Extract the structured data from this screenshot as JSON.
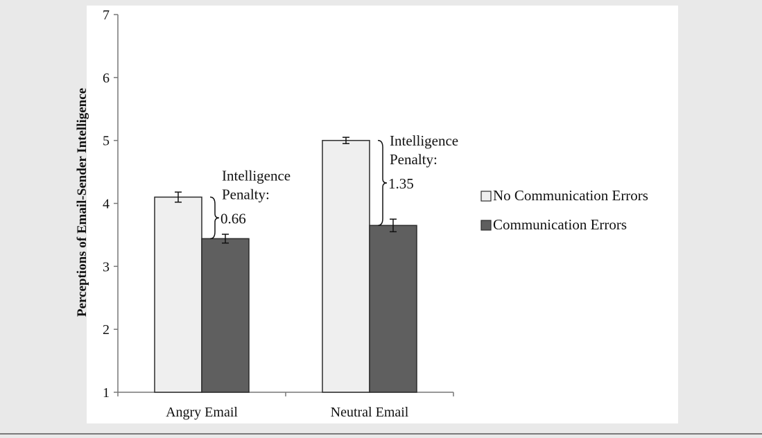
{
  "chart_data": {
    "type": "bar",
    "title": "",
    "xlabel": "",
    "ylabel": "Perceptions of Email-Sender Intelligence",
    "ylim": [
      1,
      7
    ],
    "yticks": [
      1,
      2,
      3,
      4,
      5,
      6,
      7
    ],
    "grid": false,
    "categories": [
      "Angry Email",
      "Neutral Email"
    ],
    "series": [
      {
        "name": "No Communication Errors",
        "values": [
          4.1,
          5.0
        ],
        "errors": [
          0.08,
          0.05
        ],
        "color": "#efefef"
      },
      {
        "name": "Communication Errors",
        "values": [
          3.44,
          3.65
        ],
        "errors": [
          0.07,
          0.1
        ],
        "color": "#5f5f5f"
      }
    ],
    "legend_position": "right",
    "annotations": [
      {
        "category": "Angry Email",
        "lines": [
          "Intelligence",
          "Penalty:",
          "0.66"
        ]
      },
      {
        "category": "Neutral Email",
        "lines": [
          "Intelligence",
          "Penalty:",
          "1.35"
        ]
      }
    ]
  }
}
